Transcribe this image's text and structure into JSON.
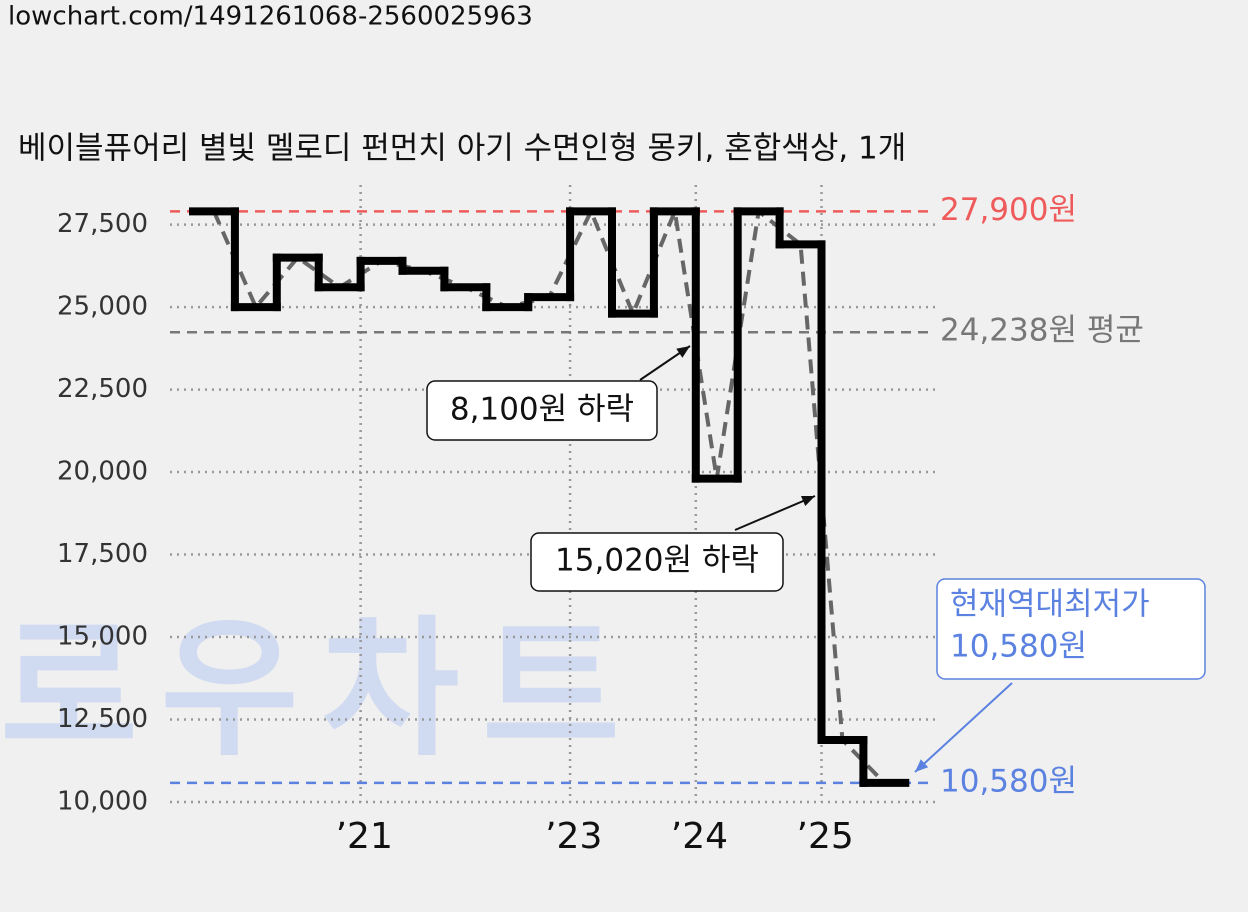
{
  "url": "lowchart.com/1491261068-2560025963",
  "watermark": "로우차트",
  "chart_data": {
    "type": "step",
    "title": "베이블퓨어리 별빛 멜로디 펀먼치 아기 수면인형 몽키, 혼합색상, 1개",
    "categories": [
      null,
      null,
      null,
      null,
      "’21",
      null,
      null,
      null,
      null,
      "’23",
      null,
      null,
      "’24",
      null,
      null,
      "’25",
      null
    ],
    "values": [
      27900,
      25000,
      26500,
      25600,
      26400,
      26100,
      25600,
      25000,
      25300,
      27900,
      24800,
      27900,
      19800,
      27900,
      26900,
      11880,
      10580
    ],
    "color": "#000000",
    "trend_color": "#666666",
    "ylim": [
      10000,
      28700
    ],
    "yticks": [
      {
        "value": 10000,
        "label": "10,000"
      },
      {
        "value": 12500,
        "label": "12,500"
      },
      {
        "value": 15000,
        "label": "15,000"
      },
      {
        "value": 17500,
        "label": "17,500"
      },
      {
        "value": 20000,
        "label": "20,000"
      },
      {
        "value": 22500,
        "label": "22,500"
      },
      {
        "value": 25000,
        "label": "25,000"
      },
      {
        "value": 27500,
        "label": "27,500"
      }
    ],
    "grid": true,
    "reference_lines": [
      {
        "value": 27900,
        "label": "27,900원",
        "color": "#ef5b5b"
      },
      {
        "value": 24238,
        "label": "24,238원 평균",
        "color": "#777777"
      },
      {
        "value": 10580,
        "label": "10,580원",
        "color": "#5b82e0"
      }
    ],
    "annotations": [
      {
        "text": "8,100원 하락"
      },
      {
        "text": "15,020원 하락"
      },
      {
        "lines": [
          "현재역대최저가",
          "10,580원"
        ]
      }
    ]
  }
}
